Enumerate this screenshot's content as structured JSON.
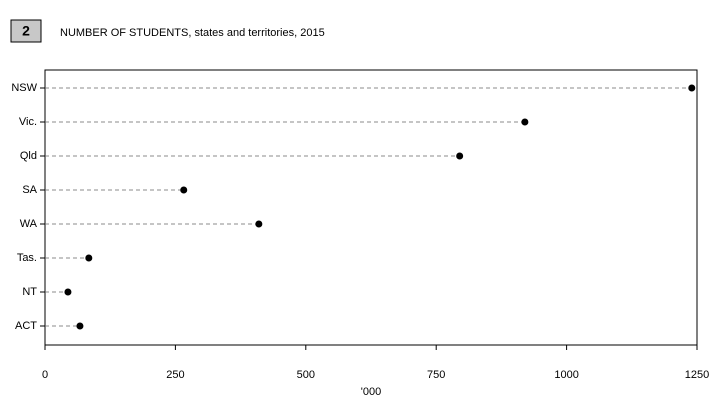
{
  "chart_data": {
    "type": "dot",
    "figure_number": "2",
    "title": "NUMBER OF STUDENTS, states and territories, 2015",
    "x_label": "'000",
    "categories": [
      "NSW",
      "Vic.",
      "Qld",
      "SA",
      "WA",
      "Tas.",
      "NT",
      "ACT"
    ],
    "values": [
      1240,
      920,
      795,
      266,
      410,
      84,
      44,
      67
    ],
    "color": "#000000",
    "xlim": [
      0,
      1250
    ],
    "xticks": [
      0,
      250,
      500,
      750,
      1000,
      1250
    ]
  }
}
